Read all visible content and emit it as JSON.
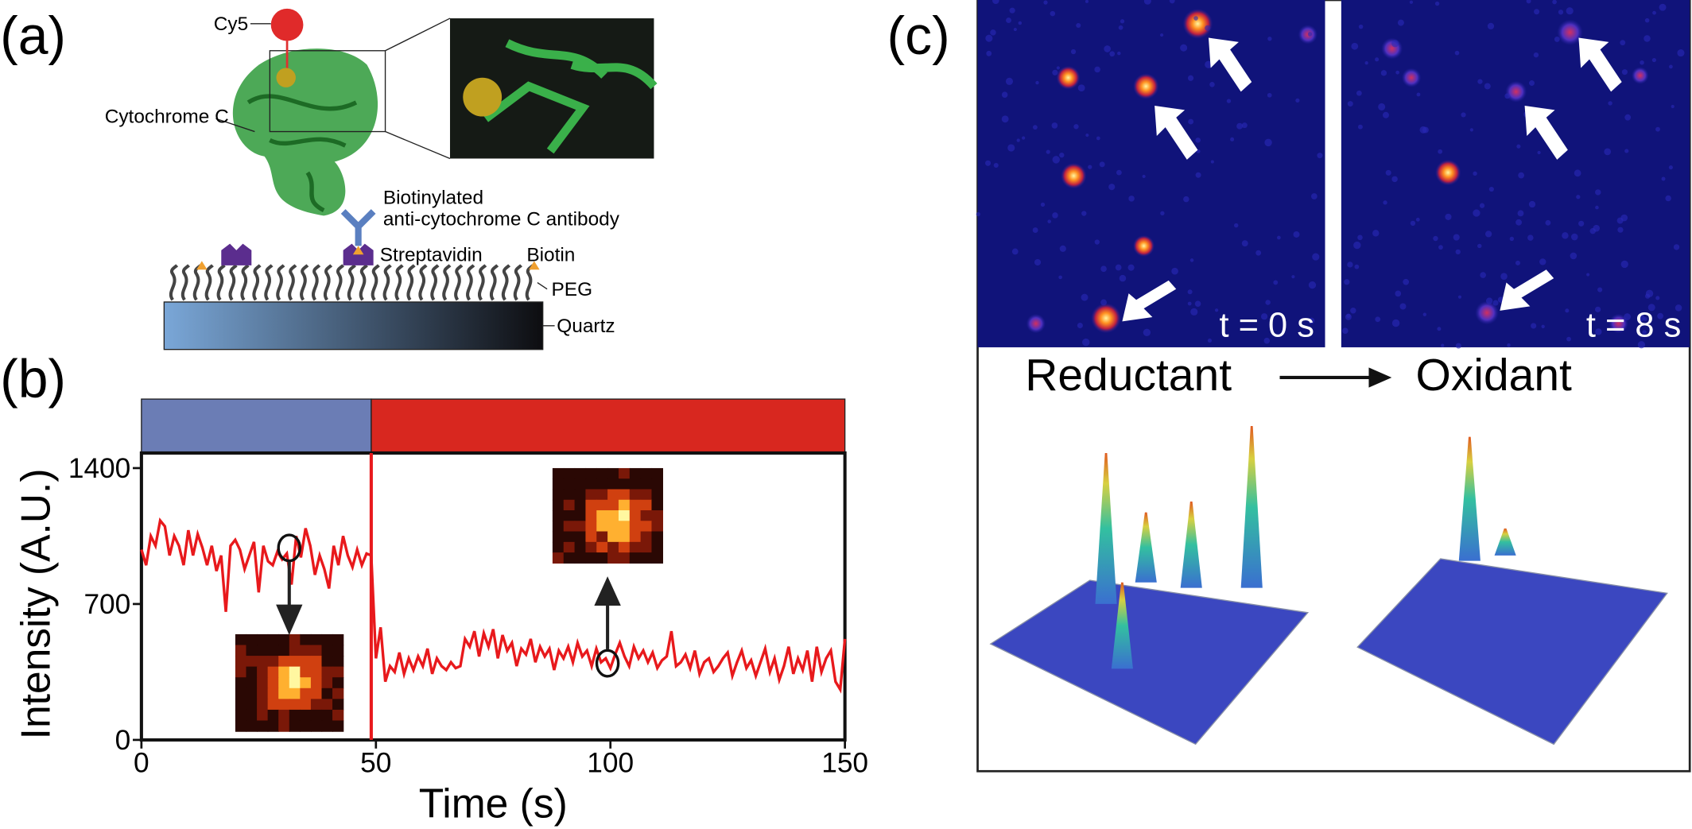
{
  "panel_labels": [
    "(a)",
    "(b)",
    "(c)"
  ],
  "diagram": {
    "cy5": "Cy5",
    "protein": "Cytochrome C",
    "antibody_1": "Biotinylated",
    "antibody_2": "anti-cytochrome C antibody",
    "streptavidin": "Streptavidin",
    "biotin": "Biotin",
    "peg": "PEG",
    "quartz": "Quartz"
  },
  "imaging": {
    "times": [
      "t = 0 s",
      "t = 8 s"
    ],
    "from": "Reductant",
    "to": "Oxidant"
  },
  "chart_data": {
    "type": "line",
    "xlabel": "Time (s)",
    "ylabel": "Intensity (A.U.)",
    "color": "#e8191c",
    "xlim": [
      0,
      150
    ],
    "ylim": [
      0,
      1400
    ],
    "xticks": [
      0,
      50,
      100,
      150
    ],
    "yticks": [
      0,
      700,
      1400
    ],
    "phases": [
      {
        "start": 0,
        "end": 49,
        "color": "#6b7db5"
      },
      {
        "start": 49,
        "end": 150,
        "color": "#d8271f"
      }
    ],
    "x": [
      0,
      1,
      2,
      3,
      4,
      5,
      6,
      7,
      8,
      9,
      10,
      11,
      12,
      13,
      14,
      15,
      16,
      17,
      18,
      19,
      20,
      21,
      22,
      23,
      24,
      25,
      26,
      27,
      28,
      29,
      30,
      31,
      32,
      33,
      34,
      35,
      36,
      37,
      38,
      39,
      40,
      41,
      42,
      43,
      44,
      45,
      46,
      47,
      48,
      49,
      50,
      51,
      52,
      53,
      54,
      55,
      56,
      57,
      58,
      59,
      60,
      61,
      62,
      63,
      64,
      65,
      66,
      67,
      68,
      69,
      70,
      71,
      72,
      73,
      74,
      75,
      76,
      77,
      78,
      79,
      80,
      81,
      82,
      83,
      84,
      85,
      86,
      87,
      88,
      89,
      90,
      91,
      92,
      93,
      94,
      95,
      96,
      97,
      98,
      99,
      100,
      101,
      102,
      103,
      104,
      105,
      106,
      107,
      108,
      109,
      110,
      111,
      112,
      113,
      114,
      115,
      116,
      117,
      118,
      119,
      120,
      121,
      122,
      123,
      124,
      125,
      126,
      127,
      128,
      129,
      130,
      131,
      132,
      133,
      134,
      135,
      136,
      137,
      138,
      139,
      140,
      141,
      142,
      143,
      144,
      145,
      146,
      147,
      148,
      149,
      150
    ],
    "values": [
      980,
      900,
      1050,
      1000,
      1130,
      1100,
      950,
      1050,
      1000,
      900,
      1080,
      950,
      1060,
      990,
      900,
      1000,
      870,
      950,
      660,
      1000,
      1030,
      980,
      880,
      950,
      1020,
      760,
      1000,
      920,
      900,
      970,
      930,
      960,
      800,
      1050,
      940,
      1090,
      1000,
      850,
      950,
      880,
      780,
      1000,
      900,
      1050,
      950,
      890,
      980,
      900,
      960,
      950,
      420,
      580,
      300,
      380,
      350,
      450,
      340,
      420,
      360,
      430,
      380,
      470,
      340,
      420,
      380,
      360,
      400,
      370,
      380,
      520,
      480,
      560,
      430,
      550,
      480,
      570,
      420,
      540,
      460,
      500,
      380,
      470,
      440,
      520,
      400,
      480,
      430,
      470,
      360,
      460,
      420,
      480,
      400,
      500,
      430,
      460,
      380,
      470,
      400,
      420,
      370,
      440,
      500,
      430,
      380,
      480,
      420,
      460,
      400,
      450,
      370,
      410,
      430,
      560,
      380,
      400,
      440,
      370,
      460,
      340,
      400,
      420,
      350,
      380,
      420,
      450,
      330,
      400,
      460,
      370,
      410,
      330,
      400,
      470,
      350,
      420,
      310,
      380,
      480,
      340,
      420,
      360,
      460,
      300,
      480,
      350,
      420,
      460,
      300,
      260,
      520
    ]
  }
}
